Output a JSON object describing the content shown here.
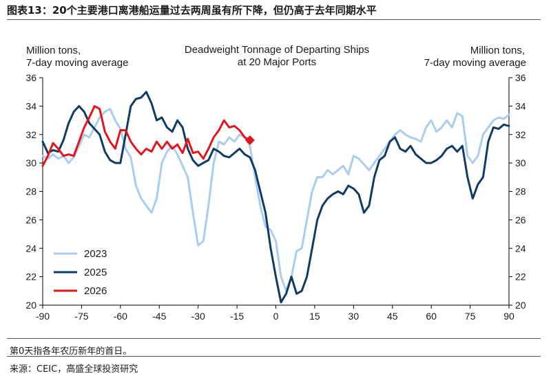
{
  "figure": {
    "label": "图表13：",
    "title": "20个主要港口离港船运量过去两周虽有所下降，但仍高于去年同期水平",
    "note": "第0天指各年农历新年的首日。",
    "source": "来源：CEIC，高盛全球投资研究"
  },
  "chart_data": {
    "type": "line",
    "title": [
      "Deadweight Tonnage of Departing Ships",
      "at 20 Major Ports"
    ],
    "ylabel_left": [
      "Million tons,",
      "7-day moving average"
    ],
    "ylabel_right": [
      "Million tons,",
      "7-day moving average"
    ],
    "xlim": [
      -90,
      90
    ],
    "ylim": [
      20,
      36
    ],
    "xticks": [
      -90,
      -75,
      -60,
      -45,
      -30,
      -15,
      0,
      15,
      30,
      45,
      60,
      75,
      90
    ],
    "yticks": [
      20,
      22,
      24,
      26,
      28,
      30,
      32,
      34,
      36
    ],
    "legend": {
      "position": "bottom-left",
      "entries": [
        "2023",
        "2025",
        "2026"
      ]
    },
    "series": [
      {
        "name": "2023",
        "color": "#a9cdee",
        "x": [
          -90,
          -88,
          -86,
          -84,
          -82,
          -80,
          -78,
          -76,
          -74,
          -72,
          -70,
          -68,
          -66,
          -64,
          -62,
          -60,
          -58,
          -56,
          -54,
          -52,
          -50,
          -48,
          -46,
          -44,
          -42,
          -40,
          -38,
          -36,
          -34,
          -32,
          -30,
          -28,
          -26,
          -24,
          -22,
          -20,
          -18,
          -16,
          -14,
          -12,
          -10,
          -8,
          -6,
          -4,
          -2,
          0,
          2,
          4,
          6,
          8,
          10,
          12,
          14,
          16,
          18,
          20,
          22,
          24,
          26,
          28,
          30,
          32,
          34,
          36,
          38,
          40,
          42,
          44,
          46,
          48,
          50,
          52,
          54,
          56,
          58,
          60,
          62,
          64,
          66,
          68,
          70,
          72,
          74,
          76,
          78,
          80,
          82,
          84,
          86,
          88,
          90
        ],
        "values": [
          30.5,
          30.3,
          30.6,
          30.3,
          30.5,
          30.0,
          30.4,
          31.2,
          32.0,
          31.8,
          32.5,
          33.2,
          33.6,
          33.8,
          33.0,
          32.4,
          31.0,
          30.4,
          28.4,
          27.5,
          27.0,
          26.5,
          27.5,
          30.0,
          30.8,
          31.2,
          30.6,
          29.8,
          29.0,
          26.5,
          24.2,
          24.5,
          27.0,
          30.0,
          31.5,
          31.3,
          31.8,
          31.5,
          32.0,
          31.8,
          31.2,
          29.0,
          27.0,
          25.5,
          25.3,
          24.5,
          22.0,
          21.0,
          22.0,
          23.8,
          24.0,
          26.0,
          28.0,
          29.0,
          29.0,
          29.5,
          29.2,
          29.5,
          29.8,
          29.2,
          30.5,
          30.3,
          29.9,
          29.5,
          30.0,
          30.5,
          31.0,
          31.5,
          32.0,
          32.3,
          32.0,
          31.8,
          31.7,
          31.5,
          32.5,
          33.0,
          32.2,
          32.5,
          33.0,
          32.5,
          33.5,
          33.3,
          30.5,
          30.0,
          30.5,
          32.0,
          32.5,
          33.0,
          33.2,
          33.1,
          33.4
        ]
      },
      {
        "name": "2025",
        "color": "#0e3a64",
        "x": [
          -90,
          -88,
          -86,
          -84,
          -82,
          -80,
          -78,
          -76,
          -74,
          -72,
          -70,
          -68,
          -66,
          -64,
          -62,
          -60,
          -58,
          -56,
          -54,
          -52,
          -50,
          -48,
          -46,
          -44,
          -42,
          -40,
          -38,
          -36,
          -34,
          -32,
          -30,
          -28,
          -26,
          -24,
          -22,
          -20,
          -18,
          -16,
          -14,
          -12,
          -10,
          -8,
          -6,
          -4,
          -2,
          0,
          2,
          4,
          6,
          8,
          10,
          12,
          14,
          16,
          18,
          20,
          22,
          24,
          26,
          28,
          30,
          32,
          34,
          36,
          38,
          40,
          42,
          44,
          46,
          48,
          50,
          52,
          54,
          56,
          58,
          60,
          62,
          64,
          66,
          68,
          70,
          72,
          74,
          76,
          78,
          80,
          82,
          84,
          86,
          88,
          90
        ],
        "values": [
          31.5,
          30.7,
          30.9,
          30.8,
          31.6,
          32.8,
          33.6,
          34.0,
          33.6,
          32.8,
          32.4,
          32.0,
          30.8,
          30.2,
          30.0,
          30.0,
          32.0,
          34.0,
          34.5,
          34.6,
          35.0,
          34.2,
          33.0,
          33.2,
          32.5,
          32.2,
          33.0,
          32.5,
          31.0,
          30.2,
          29.8,
          30.0,
          30.2,
          31.0,
          30.8,
          30.5,
          30.4,
          30.7,
          31.0,
          30.6,
          30.4,
          29.5,
          28.0,
          26.5,
          24.0,
          22.0,
          20.2,
          20.8,
          22.0,
          20.8,
          21.0,
          22.0,
          24.0,
          26.0,
          27.0,
          27.5,
          27.8,
          28.0,
          27.8,
          28.4,
          28.2,
          27.8,
          26.5,
          27.0,
          29.0,
          30.2,
          30.5,
          31.5,
          31.8,
          31.0,
          30.8,
          31.2,
          30.6,
          30.3,
          30.0,
          30.0,
          30.2,
          30.5,
          31.0,
          31.2,
          30.8,
          31.2,
          29.0,
          27.5,
          28.5,
          29.0,
          31.5,
          32.5,
          32.4,
          32.7,
          32.6
        ]
      },
      {
        "name": "2026",
        "color": "#e3151b",
        "x": [
          -90,
          -88,
          -86,
          -84,
          -82,
          -80,
          -78,
          -76,
          -74,
          -72,
          -70,
          -68,
          -66,
          -64,
          -62,
          -60,
          -58,
          -56,
          -54,
          -52,
          -50,
          -48,
          -46,
          -44,
          -42,
          -40,
          -38,
          -36,
          -34,
          -32,
          -30,
          -28,
          -26,
          -24,
          -22,
          -20,
          -18,
          -16,
          -14,
          -12,
          -10
        ],
        "values": [
          29.8,
          30.5,
          31.4,
          31.0,
          30.5,
          30.6,
          30.5,
          31.5,
          32.5,
          33.2,
          34.0,
          33.8,
          32.2,
          31.5,
          31.0,
          32.3,
          32.3,
          31.5,
          31.0,
          30.6,
          31.0,
          30.8,
          31.5,
          31.0,
          31.5,
          31.0,
          31.3,
          30.7,
          31.7,
          30.7,
          30.8,
          30.3,
          31.0,
          31.8,
          32.3,
          33.0,
          32.5,
          32.6,
          32.3,
          31.8,
          31.6
        ],
        "end_marker": true
      }
    ]
  }
}
